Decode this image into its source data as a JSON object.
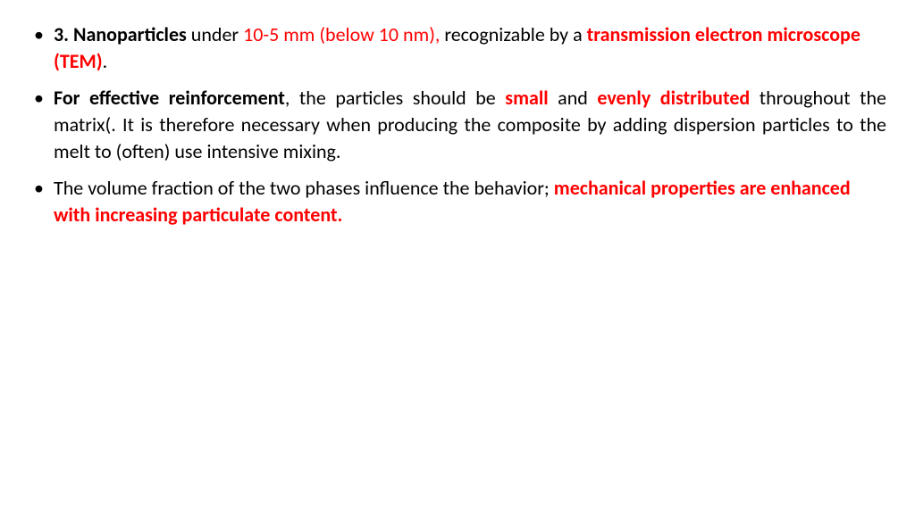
{
  "colors": {
    "text_default": "#000000",
    "text_accent": "#ff0000",
    "background": "#ffffff"
  },
  "typography": {
    "font_family": "Calibri",
    "body_fontsize_pt": 17,
    "line_height": 1.35
  },
  "bullets": [
    {
      "align": "left",
      "runs": [
        {
          "text": "3. Nanoparticles",
          "bold": true,
          "red": false
        },
        {
          "text": " under ",
          "bold": false,
          "red": false
        },
        {
          "text": "10-5 mm (below 10 nm),",
          "bold": false,
          "red": true
        },
        {
          "text": " recognizable by a ",
          "bold": false,
          "red": false
        },
        {
          "text": "transmission electron microscope (TEM)",
          "bold": true,
          "red": true
        },
        {
          "text": ".",
          "bold": false,
          "red": false
        }
      ]
    },
    {
      "align": "justify",
      "runs": [
        {
          "text": " For effective reinforcement",
          "bold": true,
          "red": false
        },
        {
          "text": ", the particles should be ",
          "bold": false,
          "red": false
        },
        {
          "text": "small",
          "bold": true,
          "red": true
        },
        {
          "text": " and ",
          "bold": false,
          "red": false
        },
        {
          "text": "evenly distributed",
          "bold": true,
          "red": true
        },
        {
          "text": " throughout the matrix(. It is therefore necessary when producing the composite by adding dispersion particles to the melt to (often) use intensive mixing.",
          "bold": false,
          "red": false
        }
      ]
    },
    {
      "align": "left",
      "runs": [
        {
          "text": "The volume fraction of the two phases influence the behavior; ",
          "bold": false,
          "red": false
        },
        {
          "text": "mechanical properties are enhanced with increasing particulate content.",
          "bold": true,
          "red": true
        }
      ]
    }
  ]
}
